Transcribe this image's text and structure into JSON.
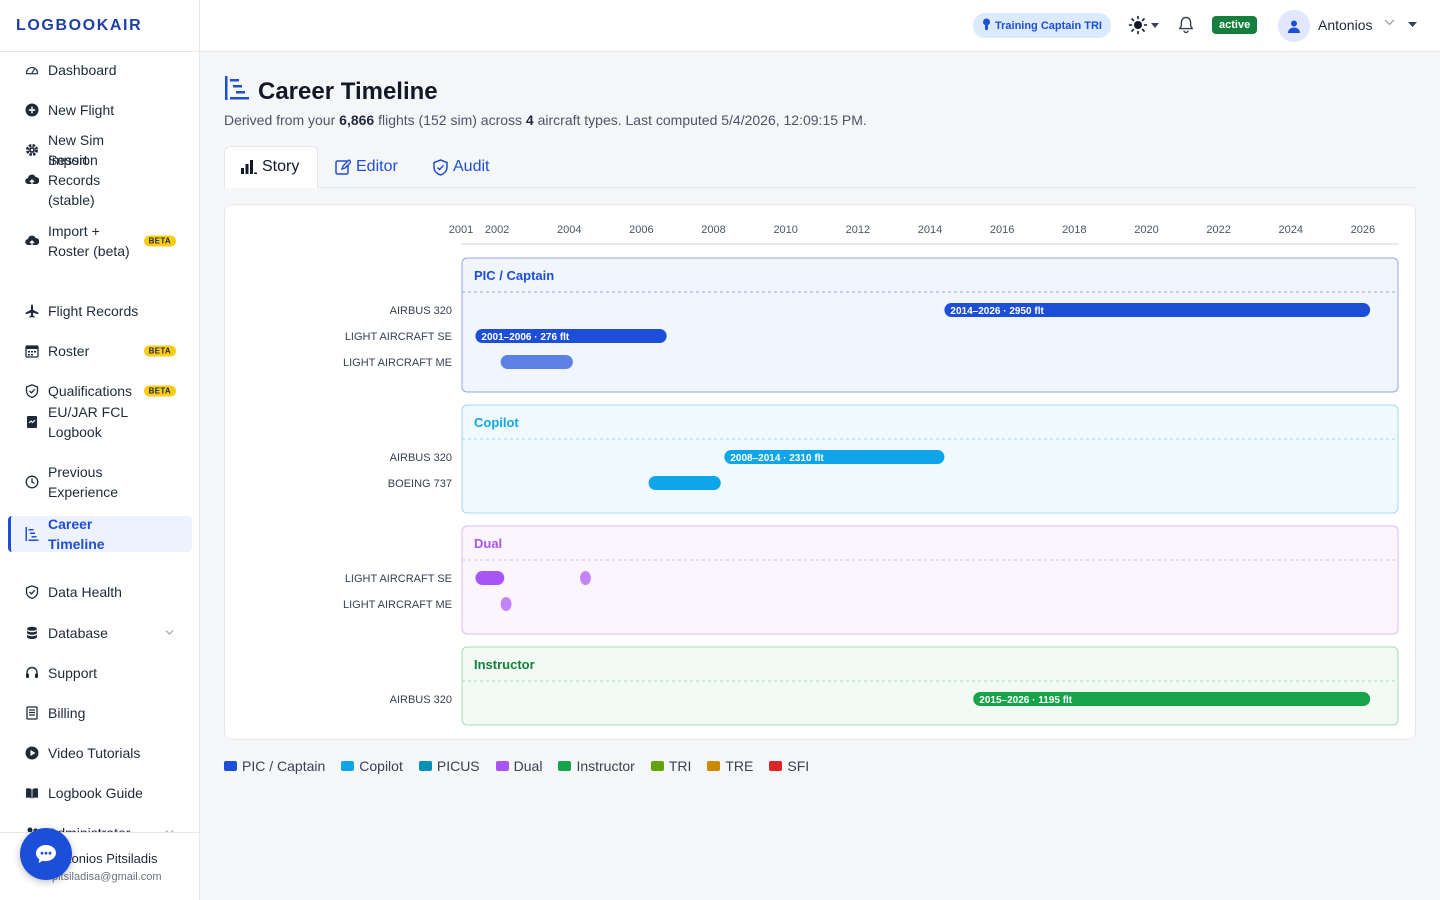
{
  "brand": "LOGBOOKAIR",
  "sidebar": {
    "items": [
      {
        "label": "Dashboard",
        "icon": "gauge-icon"
      },
      {
        "label": "New Flight",
        "icon": "plus-circle-icon"
      },
      {
        "label": "New Sim Session",
        "icon": "gear-icon"
      },
      {
        "label": "Import Records (stable)",
        "icon": "cloud-upload-icon"
      },
      {
        "label": "Import + Roster (beta)",
        "icon": "cloud-upload-icon",
        "badge": "BETA"
      },
      {
        "label": "Flight Records",
        "icon": "plane-icon"
      },
      {
        "label": "Roster",
        "icon": "calendar-icon",
        "badge": "BETA"
      },
      {
        "label": "Qualifications",
        "icon": "shield-icon",
        "badge": "BETA"
      },
      {
        "label": "EU/JAR FCL Logbook",
        "icon": "book-icon"
      },
      {
        "label": "Previous Experience",
        "icon": "history-icon"
      },
      {
        "label": "Career Timeline",
        "icon": "timeline-icon",
        "active": true
      },
      {
        "label": "Data Health",
        "icon": "shield-check-icon"
      },
      {
        "label": "Database",
        "icon": "database-icon",
        "expandable": true
      },
      {
        "label": "Support",
        "icon": "headset-icon"
      },
      {
        "label": "Billing",
        "icon": "receipt-icon"
      },
      {
        "label": "Video Tutorials",
        "icon": "play-icon"
      },
      {
        "label": "Logbook Guide",
        "icon": "open-book-icon"
      },
      {
        "label": "Administrator",
        "icon": "users-icon",
        "expandable": true
      }
    ],
    "user": {
      "name": "Antonios Pitsiladis",
      "email": "pitsiladisa@gmail.com"
    }
  },
  "topbar": {
    "role": "Training Captain TRI",
    "status": "active",
    "user": "Antonios"
  },
  "page": {
    "title": "Career Timeline",
    "subtitle": {
      "prefix": "Derived from your ",
      "flights": "6,866",
      "mid1": " flights (152 sim) across ",
      "types": "4",
      "mid2": " aircraft types. Last computed 5/4/2026, 12:09:15 PM."
    },
    "tabs": [
      {
        "label": "Story",
        "icon": "bar-chart-icon",
        "active": true
      },
      {
        "label": "Editor",
        "icon": "edit-icon"
      },
      {
        "label": "Audit",
        "icon": "shield-check-icon"
      }
    ]
  },
  "chart_data": {
    "type": "timeline",
    "x_ticks": [
      "2001",
      "2002",
      "2004",
      "2006",
      "2008",
      "2010",
      "2012",
      "2014",
      "2016",
      "2018",
      "2020",
      "2022",
      "2024",
      "2026"
    ],
    "xlim": [
      2001,
      2027
    ],
    "groups": [
      {
        "name": "PIC / Captain",
        "color": "#1d4ed8",
        "bg": "#f1f5fe",
        "border": "#93a8dd",
        "title_color": "#1d4ed8",
        "rows": [
          {
            "label": "AIRBUS 320",
            "bars": [
              {
                "start": 2014.4,
                "end": 2026.2,
                "label": "2014–2026 · 2950 flt"
              }
            ]
          },
          {
            "label": "LIGHT AIRCRAFT SE",
            "bars": [
              {
                "start": 2001.4,
                "end": 2006.7,
                "label": "2001–2006 · 276 flt"
              }
            ]
          },
          {
            "label": "LIGHT AIRCRAFT ME",
            "bars": [
              {
                "start": 2002.1,
                "end": 2004.1,
                "label": "",
                "light": true
              }
            ]
          }
        ]
      },
      {
        "name": "Copilot",
        "color": "#0ea5e9",
        "bg": "#f0f9fe",
        "border": "#a4d6ee",
        "title_color": "#0ea5e9",
        "rows": [
          {
            "label": "AIRBUS 320",
            "bars": [
              {
                "start": 2008.3,
                "end": 2014.4,
                "label": "2008–2014 · 2310 flt"
              }
            ]
          },
          {
            "label": "BOEING 737",
            "bars": [
              {
                "start": 2006.2,
                "end": 2008.2,
                "label": ""
              }
            ]
          }
        ]
      },
      {
        "name": "Dual",
        "color": "#a855f7",
        "bg": "#fbf5fe",
        "border": "#dcbaf3",
        "title_color": "#a855f7",
        "rows": [
          {
            "label": "LIGHT AIRCRAFT SE",
            "bars": [
              {
                "start": 2001.4,
                "end": 2002.2,
                "label": ""
              },
              {
                "start": 2004.3,
                "end": 2004.6,
                "label": "",
                "light": true
              }
            ]
          },
          {
            "label": "LIGHT AIRCRAFT ME",
            "bars": [
              {
                "start": 2002.1,
                "end": 2002.4,
                "label": "",
                "light": true
              }
            ]
          }
        ]
      },
      {
        "name": "Instructor",
        "color": "#16a34a",
        "bg": "#f2faf4",
        "border": "#a6dbb6",
        "title_color": "#15803d",
        "rows": [
          {
            "label": "AIRBUS 320",
            "bars": [
              {
                "start": 2015.2,
                "end": 2026.2,
                "label": "2015–2026 · 1195 flt"
              }
            ]
          }
        ]
      }
    ],
    "legend": [
      {
        "name": "PIC / Captain",
        "color": "#1d4ed8"
      },
      {
        "name": "Copilot",
        "color": "#0ea5e9"
      },
      {
        "name": "PICUS",
        "color": "#0891b2"
      },
      {
        "name": "Dual",
        "color": "#a855f7"
      },
      {
        "name": "Instructor",
        "color": "#16a34a"
      },
      {
        "name": "TRI",
        "color": "#65a30d"
      },
      {
        "name": "TRE",
        "color": "#ca8a04"
      },
      {
        "name": "SFI",
        "color": "#dc2626"
      }
    ]
  }
}
